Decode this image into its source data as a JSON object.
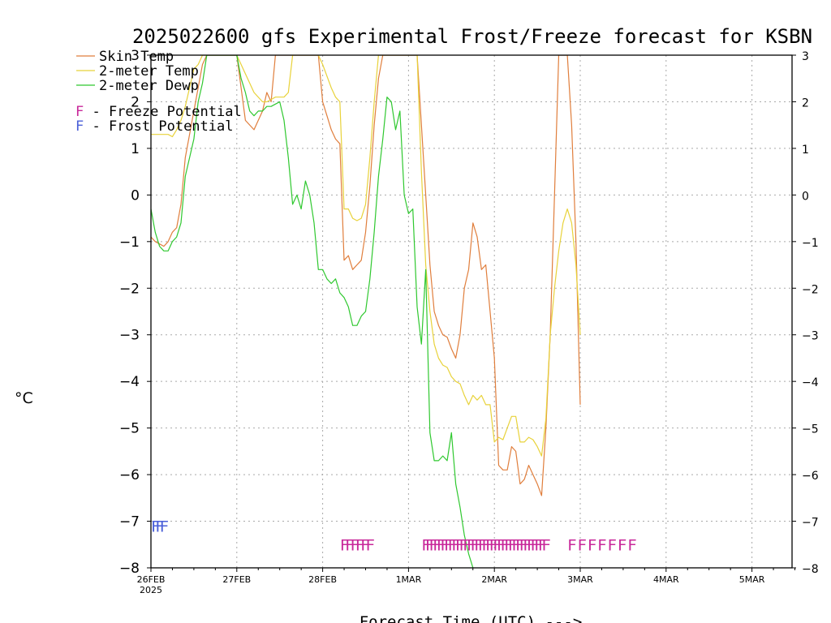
{
  "chart_data": {
    "type": "line",
    "title": "2025022600 gfs Experimental Frost/Freeze forecast for KSBN",
    "ylabel": "°C",
    "xlabel": "Forecast Time (UTC) --->",
    "ylim": [
      -8,
      3
    ],
    "xlim_days": [
      0,
      7.5
    ],
    "yticks": [
      -8,
      -7,
      -6,
      -5,
      -4,
      -3,
      -2,
      -1,
      0,
      1,
      2,
      3
    ],
    "x_tick_labels": [
      "26FEB",
      "27FEB",
      "28FEB",
      "1MAR",
      "2MAR",
      "3MAR",
      "4MAR",
      "5MAR"
    ],
    "x_year_label": "2025",
    "grid": true,
    "legend_position": "top-left",
    "colors": {
      "skin": "#e07e3c",
      "temp": "#e8d23a",
      "dewp": "#2fc82f",
      "freeze": "#c8289a",
      "frost": "#4a5fd8"
    },
    "legend": [
      {
        "key": "skin",
        "label": "Skin Temp"
      },
      {
        "key": "temp",
        "label": "2-meter Temp"
      },
      {
        "key": "dewp",
        "label": "2-meter Dewp"
      }
    ],
    "marker_legend": [
      {
        "symbol": "F",
        "text": " - Freeze Potential",
        "color_key": "freeze"
      },
      {
        "symbol": "F",
        "text": " - Frost Potential",
        "color_key": "frost"
      }
    ],
    "series": [
      {
        "name": "Skin Temp",
        "color_key": "skin",
        "x": [
          0.0,
          0.05,
          0.1,
          0.15,
          0.2,
          0.25,
          0.3,
          0.35,
          0.4,
          0.45,
          0.5,
          0.55,
          0.6,
          0.65,
          0.7,
          0.75,
          0.8,
          1.0,
          1.1,
          1.2,
          1.3,
          1.35,
          1.4,
          1.45,
          1.5,
          1.55,
          1.6,
          1.65,
          1.7,
          1.75,
          1.95,
          2.0,
          2.05,
          2.1,
          2.15,
          2.2,
          2.25,
          2.3,
          2.35,
          2.4,
          2.45,
          2.5,
          2.55,
          2.6,
          2.65,
          2.7,
          2.75,
          3.1,
          3.15,
          3.2,
          3.25,
          3.3,
          3.35,
          3.4,
          3.45,
          3.5,
          3.55,
          3.6,
          3.65,
          3.7,
          3.75,
          3.8,
          3.85,
          3.9,
          3.95,
          4.0,
          4.05,
          4.1,
          4.15,
          4.2,
          4.25,
          4.3,
          4.35,
          4.4,
          4.45,
          4.5,
          4.55,
          4.6,
          4.65,
          4.7,
          4.75,
          4.85,
          4.9,
          4.95,
          5.0
        ],
        "y": [
          -0.9,
          -1.0,
          -1.05,
          -1.1,
          -1.0,
          -0.8,
          -0.7,
          -0.2,
          0.8,
          1.3,
          1.8,
          2.3,
          2.8,
          3.0,
          3.0,
          3.0,
          3.0,
          3.0,
          1.6,
          1.4,
          1.8,
          2.2,
          2.0,
          3.0,
          3.0,
          3.0,
          3.0,
          3.0,
          3.0,
          3.0,
          3.0,
          2.0,
          1.7,
          1.4,
          1.2,
          1.1,
          -1.4,
          -1.3,
          -1.6,
          -1.5,
          -1.4,
          -0.8,
          0.2,
          1.5,
          2.5,
          3.0,
          3.0,
          3.0,
          1.5,
          0.0,
          -1.5,
          -2.5,
          -2.8,
          -3.0,
          -3.05,
          -3.3,
          -3.5,
          -3.0,
          -2.0,
          -1.6,
          -0.6,
          -0.9,
          -1.6,
          -1.5,
          -2.5,
          -3.5,
          -5.8,
          -5.9,
          -5.9,
          -5.4,
          -5.5,
          -6.2,
          -6.1,
          -5.8,
          -6.0,
          -6.2,
          -6.45,
          -5.0,
          -3.0,
          0.0,
          3.0,
          3.0,
          1.5,
          -1.0,
          -4.5
        ]
      },
      {
        "name": "2-meter Temp",
        "color_key": "temp",
        "x": [
          0.0,
          0.05,
          0.1,
          0.15,
          0.2,
          0.25,
          0.3,
          0.35,
          0.4,
          0.45,
          0.5,
          0.55,
          0.6,
          0.65,
          0.7,
          0.75,
          1.0,
          1.1,
          1.2,
          1.3,
          1.35,
          1.4,
          1.45,
          1.5,
          1.55,
          1.6,
          1.65,
          1.95,
          2.0,
          2.1,
          2.15,
          2.2,
          2.25,
          2.3,
          2.35,
          2.4,
          2.45,
          2.5,
          2.55,
          2.6,
          2.65,
          2.7,
          2.75,
          3.1,
          3.15,
          3.2,
          3.25,
          3.3,
          3.35,
          3.4,
          3.45,
          3.5,
          3.55,
          3.6,
          3.65,
          3.7,
          3.75,
          3.8,
          3.85,
          3.9,
          3.95,
          4.0,
          4.05,
          4.1,
          4.15,
          4.2,
          4.25,
          4.3,
          4.35,
          4.4,
          4.45,
          4.5,
          4.55,
          4.6,
          4.65,
          4.7,
          4.75,
          4.8,
          4.85,
          4.9,
          4.95,
          5.0
        ],
        "y": [
          1.3,
          1.3,
          1.3,
          1.3,
          1.3,
          1.25,
          1.4,
          1.6,
          1.9,
          2.3,
          2.7,
          2.8,
          3.0,
          3.0,
          3.0,
          3.0,
          3.0,
          2.6,
          2.2,
          2.0,
          2.0,
          2.05,
          2.1,
          2.1,
          2.1,
          2.2,
          3.0,
          3.0,
          2.8,
          2.3,
          2.1,
          2.0,
          -0.3,
          -0.3,
          -0.5,
          -0.55,
          -0.5,
          -0.2,
          0.8,
          2.0,
          3.0,
          3.0,
          3.0,
          3.0,
          0.5,
          -1.5,
          -2.5,
          -3.2,
          -3.5,
          -3.65,
          -3.7,
          -3.9,
          -4.0,
          -4.05,
          -4.3,
          -4.5,
          -4.3,
          -4.4,
          -4.3,
          -4.5,
          -4.5,
          -5.3,
          -5.2,
          -5.25,
          -5.0,
          -4.75,
          -4.75,
          -5.3,
          -5.3,
          -5.2,
          -5.25,
          -5.4,
          -5.6,
          -4.8,
          -3.0,
          -2.0,
          -1.2,
          -0.6,
          -0.3,
          -0.6,
          -1.5,
          -3.0
        ]
      },
      {
        "name": "2-meter Dewp",
        "color_key": "dewp",
        "x": [
          0.0,
          0.05,
          0.1,
          0.15,
          0.2,
          0.25,
          0.3,
          0.35,
          0.4,
          0.45,
          0.5,
          0.55,
          0.6,
          0.65,
          0.7,
          0.75,
          0.8,
          0.85,
          0.9,
          0.95,
          1.0,
          1.05,
          1.1,
          1.15,
          1.2,
          1.25,
          1.3,
          1.35,
          1.4,
          1.45,
          1.5,
          1.55,
          1.6,
          1.65,
          1.7,
          1.75,
          1.8,
          1.85,
          1.9,
          1.95,
          2.0,
          2.05,
          2.1,
          2.15,
          2.2,
          2.25,
          2.3,
          2.35,
          2.4,
          2.45,
          2.5,
          2.55,
          2.6,
          2.65,
          2.7,
          2.75,
          2.8,
          2.85,
          2.9,
          2.95,
          3.0,
          3.05,
          3.1,
          3.15,
          3.2,
          3.25,
          3.3,
          3.35,
          3.4,
          3.45,
          3.5,
          3.55,
          3.6,
          3.65,
          3.7,
          3.75
        ],
        "y": [
          -0.3,
          -0.8,
          -1.1,
          -1.2,
          -1.2,
          -1.0,
          -0.9,
          -0.6,
          0.4,
          0.8,
          1.2,
          2.0,
          2.4,
          3.0,
          3.0,
          3.0,
          3.0,
          3.0,
          3.0,
          3.0,
          3.0,
          2.5,
          2.2,
          1.8,
          1.7,
          1.8,
          1.8,
          1.9,
          1.9,
          1.95,
          2.0,
          1.6,
          0.8,
          -0.2,
          0.0,
          -0.3,
          0.3,
          0.0,
          -0.6,
          -1.6,
          -1.6,
          -1.8,
          -1.9,
          -1.8,
          -2.1,
          -2.2,
          -2.4,
          -2.8,
          -2.8,
          -2.6,
          -2.5,
          -1.8,
          -0.8,
          0.4,
          1.2,
          2.1,
          2.0,
          1.4,
          1.8,
          0.0,
          -0.4,
          -0.3,
          -2.4,
          -3.2,
          -1.6,
          -5.1,
          -5.7,
          -5.7,
          -5.6,
          -5.7,
          -5.1,
          -6.2,
          -6.7,
          -7.3,
          -7.7,
          -8.0
        ]
      }
    ],
    "freeze_markers": {
      "label": "F",
      "y": -7.5,
      "groups": [
        {
          "from": 2.2,
          "to": 2.5,
          "count": 6
        },
        {
          "from": 3.15,
          "to": 4.55,
          "count": 33
        },
        {
          "from": 4.85,
          "to": 5.55,
          "count": 7
        }
      ]
    },
    "frost_markers": {
      "label": "F",
      "y": -7.1,
      "groups": [
        {
          "from": 0.0,
          "to": 0.1,
          "count": 3
        }
      ]
    }
  }
}
